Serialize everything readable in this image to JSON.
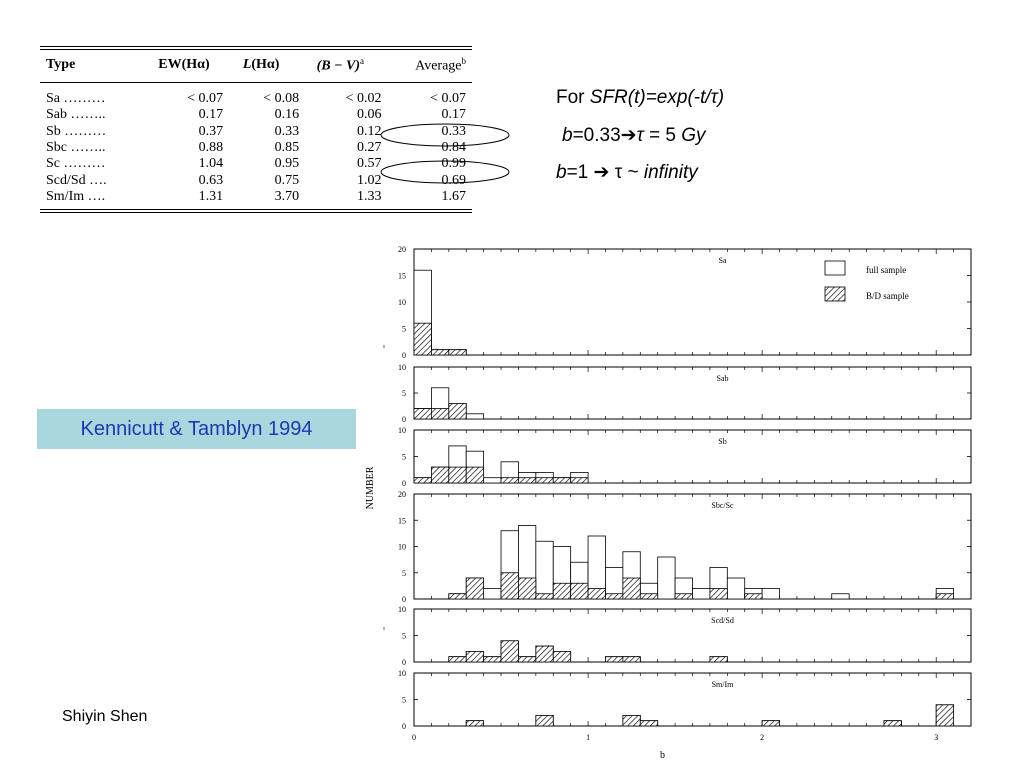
{
  "table": {
    "headers": {
      "type": "Type",
      "ew_main": "EW(Hα)",
      "l_main": "L",
      "l_rest": "(Hα)",
      "bv_main": "(B − V)",
      "bv_sup": "a",
      "avg_main": "Average",
      "avg_sup": "b"
    },
    "rows": [
      {
        "type": "Sa ………",
        "ew": "< 0.07",
        "l": "< 0.08",
        "bv": "< 0.02",
        "avg": "< 0.07"
      },
      {
        "type": "Sab ……..",
        "ew": "0.17",
        "l": "0.16",
        "bv": "0.06",
        "avg": "0.17"
      },
      {
        "type": "Sb ………",
        "ew": "0.37",
        "l": "0.33",
        "bv": "0.12",
        "avg": "0.33"
      },
      {
        "type": "Sbc ……..",
        "ew": "0.88",
        "l": "0.85",
        "bv": "0.27",
        "avg": "0.84"
      },
      {
        "type": "Sc ………",
        "ew": "1.04",
        "l": "0.95",
        "bv": "0.57",
        "avg": "0.99"
      },
      {
        "type": "Scd/Sd ….",
        "ew": "0.63",
        "l": "0.75",
        "bv": "1.02",
        "avg": "0.69"
      },
      {
        "type": "Sm/Im ….",
        "ew": "1.31",
        "l": "3.70",
        "bv": "1.33",
        "avg": "1.67"
      }
    ]
  },
  "formula": {
    "line1_prefix": "For ",
    "line1_expr": "SFR(t)=exp(-t/τ)",
    "line2_b": "b",
    "line2_val": "=0.33",
    "line2_arrow": "➔",
    "line2_tau": "τ",
    "line2_rest": " = 5 ",
    "line2_unit": "Gy",
    "line3_b": "b",
    "line3_val": "=1 ",
    "line3_arrow": "➔",
    "line3_tau": " τ ~ ",
    "line3_rest": "infinity"
  },
  "reference": "Kennicutt & Tamblyn 1994",
  "author": "Shiyin Shen",
  "chart_data": {
    "type": "bar",
    "ylabel": "NUMBER",
    "xlabel": "b",
    "xlim": [
      0,
      3.2
    ],
    "xticks": [
      "0",
      "1",
      "2",
      "3"
    ],
    "bin_width": 0.1,
    "legend": {
      "placement": "top-right",
      "full": "full sample",
      "bd": "B/D sample"
    },
    "panels": [
      {
        "name": "Sa",
        "ymax": 20,
        "yticks": [
          "0",
          "5",
          "10",
          "15",
          "20"
        ],
        "full": [
          {
            "x": 0.0,
            "v": 16
          },
          {
            "x": 0.1,
            "v": 1
          },
          {
            "x": 0.2,
            "v": 1
          }
        ],
        "bd": [
          {
            "x": 0.0,
            "v": 6
          },
          {
            "x": 0.1,
            "v": 1
          },
          {
            "x": 0.2,
            "v": 1
          }
        ]
      },
      {
        "name": "Sab",
        "ymax": 10,
        "yticks": [
          "0",
          "5",
          "10"
        ],
        "full": [
          {
            "x": 0.0,
            "v": 2
          },
          {
            "x": 0.1,
            "v": 6
          },
          {
            "x": 0.2,
            "v": 3
          },
          {
            "x": 0.3,
            "v": 1
          }
        ],
        "bd": [
          {
            "x": 0.0,
            "v": 2
          },
          {
            "x": 0.1,
            "v": 2
          },
          {
            "x": 0.2,
            "v": 3
          }
        ]
      },
      {
        "name": "Sb",
        "ymax": 10,
        "yticks": [
          "0",
          "5",
          "10"
        ],
        "full": [
          {
            "x": 0.0,
            "v": 1
          },
          {
            "x": 0.1,
            "v": 3
          },
          {
            "x": 0.2,
            "v": 7
          },
          {
            "x": 0.3,
            "v": 6
          },
          {
            "x": 0.4,
            "v": 1
          },
          {
            "x": 0.5,
            "v": 4
          },
          {
            "x": 0.6,
            "v": 2
          },
          {
            "x": 0.7,
            "v": 2
          },
          {
            "x": 0.8,
            "v": 1
          },
          {
            "x": 0.9,
            "v": 2
          }
        ],
        "bd": [
          {
            "x": 0.0,
            "v": 1
          },
          {
            "x": 0.1,
            "v": 3
          },
          {
            "x": 0.2,
            "v": 3
          },
          {
            "x": 0.3,
            "v": 3
          },
          {
            "x": 0.5,
            "v": 1
          },
          {
            "x": 0.6,
            "v": 1
          },
          {
            "x": 0.7,
            "v": 1
          },
          {
            "x": 0.8,
            "v": 1
          },
          {
            "x": 0.9,
            "v": 1
          }
        ]
      },
      {
        "name": "Sbc/Sc",
        "ymax": 20,
        "yticks": [
          "0",
          "5",
          "10",
          "15",
          "20"
        ],
        "full": [
          {
            "x": 0.2,
            "v": 1
          },
          {
            "x": 0.3,
            "v": 4
          },
          {
            "x": 0.4,
            "v": 2
          },
          {
            "x": 0.5,
            "v": 13
          },
          {
            "x": 0.6,
            "v": 14
          },
          {
            "x": 0.7,
            "v": 11
          },
          {
            "x": 0.8,
            "v": 10
          },
          {
            "x": 0.9,
            "v": 7
          },
          {
            "x": 1.0,
            "v": 12
          },
          {
            "x": 1.1,
            "v": 6
          },
          {
            "x": 1.2,
            "v": 9
          },
          {
            "x": 1.3,
            "v": 3
          },
          {
            "x": 1.4,
            "v": 8
          },
          {
            "x": 1.5,
            "v": 4
          },
          {
            "x": 1.6,
            "v": 2
          },
          {
            "x": 1.7,
            "v": 6
          },
          {
            "x": 1.8,
            "v": 4
          },
          {
            "x": 1.9,
            "v": 2
          },
          {
            "x": 2.0,
            "v": 2
          },
          {
            "x": 2.4,
            "v": 1
          },
          {
            "x": 3.0,
            "v": 2
          }
        ],
        "bd": [
          {
            "x": 0.2,
            "v": 1
          },
          {
            "x": 0.3,
            "v": 4
          },
          {
            "x": 0.5,
            "v": 5
          },
          {
            "x": 0.6,
            "v": 4
          },
          {
            "x": 0.7,
            "v": 1
          },
          {
            "x": 0.8,
            "v": 3
          },
          {
            "x": 0.9,
            "v": 3
          },
          {
            "x": 1.0,
            "v": 2
          },
          {
            "x": 1.1,
            "v": 1
          },
          {
            "x": 1.2,
            "v": 4
          },
          {
            "x": 1.3,
            "v": 1
          },
          {
            "x": 1.5,
            "v": 1
          },
          {
            "x": 1.7,
            "v": 2
          },
          {
            "x": 1.9,
            "v": 1
          },
          {
            "x": 3.0,
            "v": 1
          }
        ]
      },
      {
        "name": "Scd/Sd",
        "ymax": 10,
        "yticks": [
          "0",
          "5",
          "10"
        ],
        "full": [
          {
            "x": 0.2,
            "v": 1
          },
          {
            "x": 0.3,
            "v": 2
          },
          {
            "x": 0.4,
            "v": 1
          },
          {
            "x": 0.5,
            "v": 4
          },
          {
            "x": 0.6,
            "v": 1
          },
          {
            "x": 0.7,
            "v": 3
          },
          {
            "x": 0.8,
            "v": 2
          },
          {
            "x": 1.1,
            "v": 1
          },
          {
            "x": 1.2,
            "v": 1
          },
          {
            "x": 1.7,
            "v": 1
          }
        ],
        "bd": [
          {
            "x": 0.2,
            "v": 1
          },
          {
            "x": 0.3,
            "v": 2
          },
          {
            "x": 0.4,
            "v": 1
          },
          {
            "x": 0.5,
            "v": 4
          },
          {
            "x": 0.6,
            "v": 1
          },
          {
            "x": 0.7,
            "v": 3
          },
          {
            "x": 0.8,
            "v": 2
          },
          {
            "x": 1.1,
            "v": 1
          },
          {
            "x": 1.2,
            "v": 1
          },
          {
            "x": 1.7,
            "v": 1
          }
        ]
      },
      {
        "name": "Sm/Im",
        "ymax": 10,
        "yticks": [
          "0",
          "5",
          "10"
        ],
        "full": [
          {
            "x": 0.3,
            "v": 1
          },
          {
            "x": 0.7,
            "v": 2
          },
          {
            "x": 1.2,
            "v": 2
          },
          {
            "x": 1.3,
            "v": 1
          },
          {
            "x": 2.0,
            "v": 1
          },
          {
            "x": 2.7,
            "v": 1
          },
          {
            "x": 3.0,
            "v": 4
          }
        ],
        "bd": [
          {
            "x": 0.3,
            "v": 1
          },
          {
            "x": 0.7,
            "v": 2
          },
          {
            "x": 1.2,
            "v": 2
          },
          {
            "x": 1.3,
            "v": 1
          },
          {
            "x": 2.0,
            "v": 1
          },
          {
            "x": 2.7,
            "v": 1
          },
          {
            "x": 3.0,
            "v": 4
          }
        ]
      }
    ]
  }
}
